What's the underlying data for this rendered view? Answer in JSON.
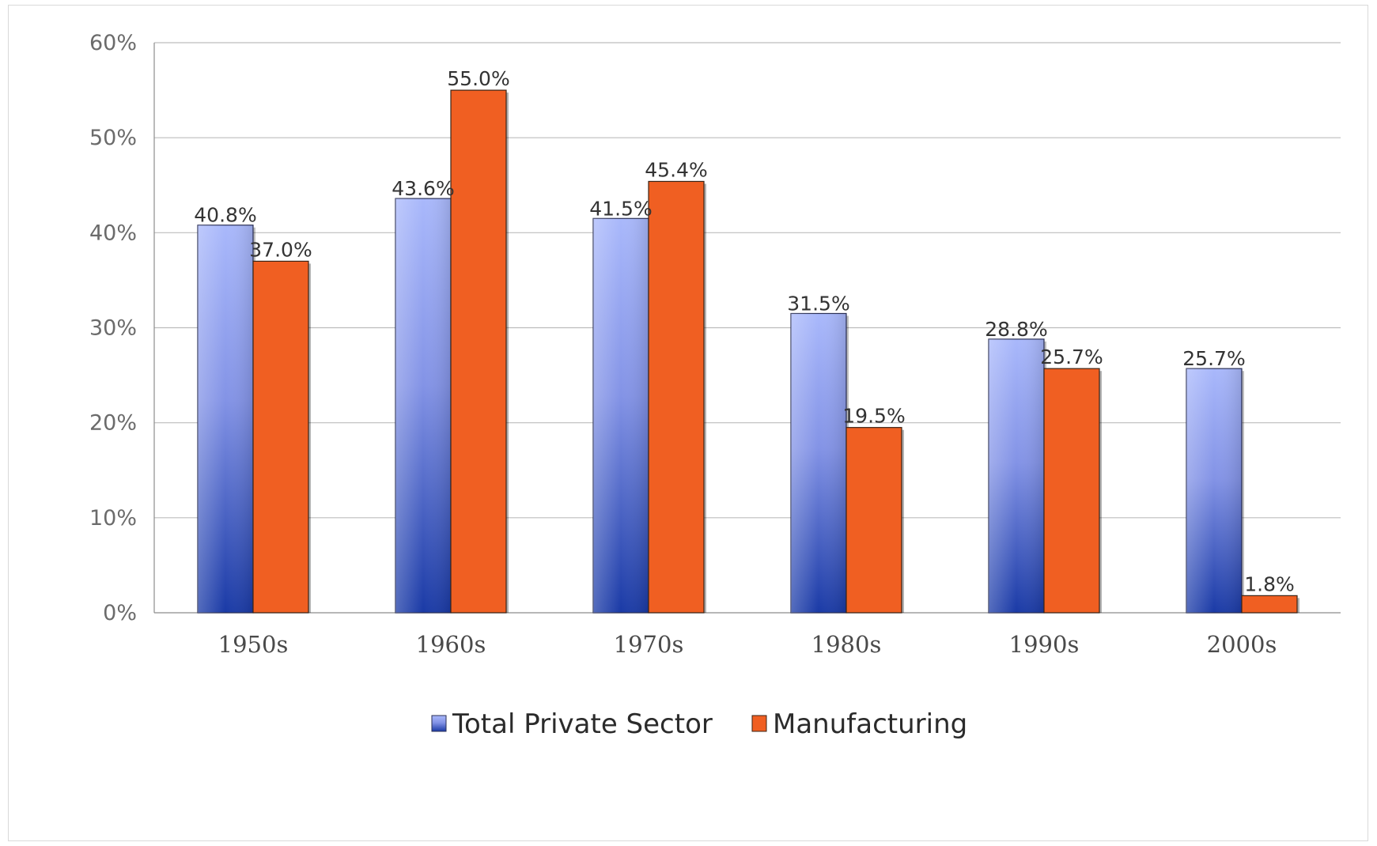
{
  "chart_data": {
    "type": "bar",
    "title": "",
    "xlabel": "",
    "ylabel": "",
    "ylim": [
      0,
      60
    ],
    "yticks": [
      "0%",
      "10%",
      "20%",
      "30%",
      "40%",
      "50%",
      "60%"
    ],
    "ytick_values": [
      0,
      10,
      20,
      30,
      40,
      50,
      60
    ],
    "categories": [
      "1950s",
      "1960s",
      "1970s",
      "1980s",
      "1990s",
      "2000s"
    ],
    "grid": true,
    "legend_position": "bottom",
    "series": [
      {
        "name": "Total Private Sector",
        "values": [
          40.8,
          43.6,
          41.5,
          31.5,
          28.8,
          25.7
        ],
        "labels": [
          "40.8%",
          "43.6%",
          "41.5%",
          "31.5%",
          "28.8%",
          "25.7%"
        ],
        "color_top": "#a9b8fb",
        "color_bottom": "#1a3aa6",
        "edge": "#2a2f55"
      },
      {
        "name": "Manufacturing",
        "values": [
          37.0,
          55.0,
          45.4,
          19.5,
          25.7,
          1.8
        ],
        "labels": [
          "37.0%",
          "55.0%",
          "45.4%",
          "19.5%",
          "25.7%",
          "1.8%"
        ],
        "color": "#f05f22",
        "edge": "#3a2315"
      }
    ]
  }
}
